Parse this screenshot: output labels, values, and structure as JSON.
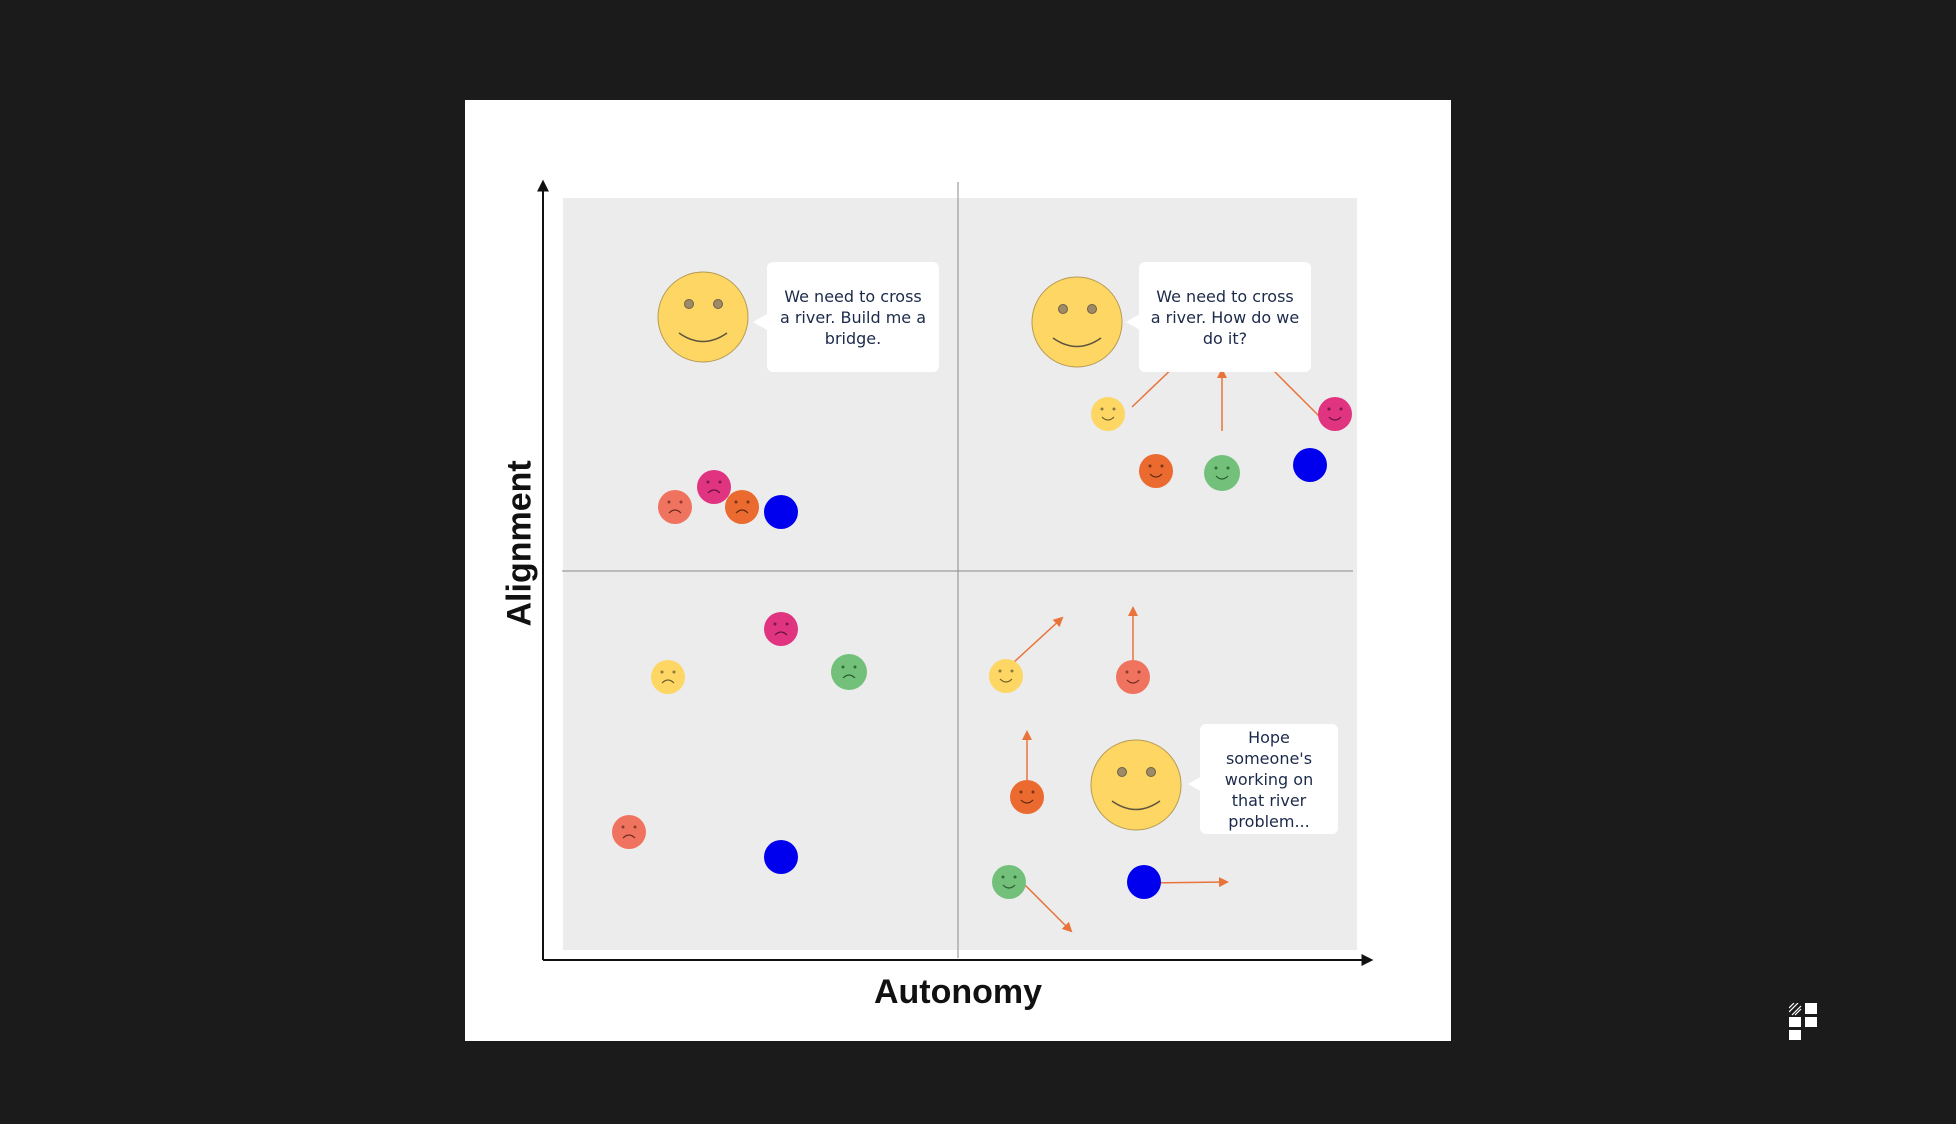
{
  "diagram": {
    "x_axis_label": "Autonomy",
    "y_axis_label": "Alignment",
    "colors": {
      "page_background": "#1b1b1b",
      "quadrant_background": "#ececec",
      "axis": "#111111",
      "arrow": "#e8743b",
      "face_yellow": "#fdd663",
      "face_orange": "#ea6a2f",
      "face_salmon": "#f0735f",
      "face_magenta": "#e03380",
      "face_green": "#72c07a",
      "face_blue": "#0000ee"
    },
    "quadrants": {
      "top_left": {
        "speech": "We need to cross a river. Build me a bridge.",
        "leader_mood": "happy",
        "members": [
          "salmon-sad",
          "magenta-sad",
          "orange-sad",
          "blue"
        ]
      },
      "top_right": {
        "speech": "We need to cross a river. How do we do it?",
        "leader_mood": "happy",
        "members": [
          "yellow-happy",
          "orange-happy",
          "green-happy",
          "magenta-happy",
          "blue"
        ],
        "arrows_toward": "speech"
      },
      "bottom_left": {
        "speech": "",
        "members": [
          "magenta-sad",
          "yellow-sad",
          "green-sad",
          "salmon-sad",
          "blue"
        ]
      },
      "bottom_right": {
        "speech": "Hope someone's working on that river problem...",
        "leader_mood": "happy",
        "members": [
          "yellow-happy",
          "salmon-happy",
          "orange-happy",
          "green-happy",
          "blue"
        ],
        "arrows_toward": "scattered"
      }
    }
  },
  "logo": {
    "icon": "brand-logo-icon"
  }
}
